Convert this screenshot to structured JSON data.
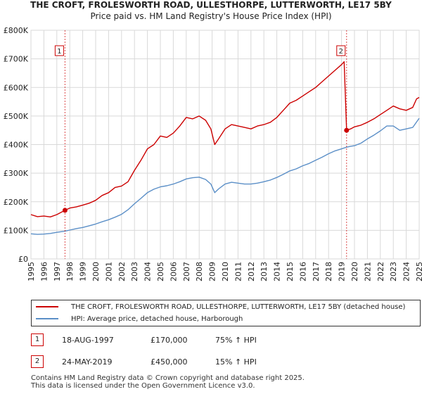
{
  "title": "THE CROFT, FROLESWORTH ROAD, ULLESTHORPE, LUTTERWORTH, LE17 5BY",
  "subtitle": "Price paid vs. HM Land Registry's House Price Index (HPI)",
  "colors": {
    "property": "#cc0000",
    "hpi": "#5b8fc7",
    "grid": "#d9d9d9",
    "marker": "#cc0000"
  },
  "chart_data": {
    "type": "line",
    "title": "THE CROFT, FROLESWORTH ROAD, ULLESTHORPE, LUTTERWORTH, LE17 5BY",
    "subtitle": "Price paid vs. HM Land Registry's House Price Index (HPI)",
    "xlabel": "",
    "ylabel": "",
    "xlim": [
      1995,
      2025
    ],
    "ylim": [
      0,
      800000
    ],
    "x_ticks": [
      "1995",
      "1996",
      "1997",
      "1998",
      "1999",
      "2000",
      "2001",
      "2002",
      "2003",
      "2004",
      "2005",
      "2006",
      "2007",
      "2008",
      "2009",
      "2010",
      "2011",
      "2012",
      "2013",
      "2014",
      "2015",
      "2016",
      "2017",
      "2018",
      "2019",
      "2020",
      "2021",
      "2022",
      "2023",
      "2024",
      "2025"
    ],
    "y_ticks": [
      {
        "value": 0,
        "label": "£0"
      },
      {
        "value": 100000,
        "label": "£100K"
      },
      {
        "value": 200000,
        "label": "£200K"
      },
      {
        "value": 300000,
        "label": "£300K"
      },
      {
        "value": 400000,
        "label": "£400K"
      },
      {
        "value": 500000,
        "label": "£500K"
      },
      {
        "value": 600000,
        "label": "£600K"
      },
      {
        "value": 700000,
        "label": "£700K"
      },
      {
        "value": 800000,
        "label": "£800K"
      }
    ],
    "grid": true,
    "series": [
      {
        "name": "THE CROFT, FROLESWORTH ROAD, ULLESTHORPE, LUTTERWORTH, LE17 5BY (detached house)",
        "color": "#cc0000",
        "points": [
          [
            1995.0,
            155000
          ],
          [
            1995.5,
            148000
          ],
          [
            1996.0,
            150000
          ],
          [
            1996.5,
            147000
          ],
          [
            1997.0,
            155000
          ],
          [
            1997.63,
            170000
          ],
          [
            1998.0,
            178000
          ],
          [
            1998.5,
            182000
          ],
          [
            1999.0,
            188000
          ],
          [
            1999.5,
            195000
          ],
          [
            2000.0,
            205000
          ],
          [
            2000.5,
            222000
          ],
          [
            2001.0,
            232000
          ],
          [
            2001.5,
            250000
          ],
          [
            2002.0,
            255000
          ],
          [
            2002.5,
            270000
          ],
          [
            2003.0,
            310000
          ],
          [
            2003.5,
            345000
          ],
          [
            2004.0,
            385000
          ],
          [
            2004.5,
            400000
          ],
          [
            2005.0,
            430000
          ],
          [
            2005.5,
            425000
          ],
          [
            2006.0,
            440000
          ],
          [
            2006.5,
            465000
          ],
          [
            2007.0,
            495000
          ],
          [
            2007.5,
            490000
          ],
          [
            2008.0,
            500000
          ],
          [
            2008.5,
            485000
          ],
          [
            2008.9,
            455000
          ],
          [
            2009.2,
            400000
          ],
          [
            2009.5,
            420000
          ],
          [
            2010.0,
            455000
          ],
          [
            2010.5,
            470000
          ],
          [
            2011.0,
            465000
          ],
          [
            2011.5,
            460000
          ],
          [
            2012.0,
            455000
          ],
          [
            2012.5,
            465000
          ],
          [
            2013.0,
            470000
          ],
          [
            2013.5,
            478000
          ],
          [
            2014.0,
            495000
          ],
          [
            2014.5,
            520000
          ],
          [
            2015.0,
            545000
          ],
          [
            2015.5,
            555000
          ],
          [
            2016.0,
            570000
          ],
          [
            2016.5,
            585000
          ],
          [
            2017.0,
            600000
          ],
          [
            2017.5,
            620000
          ],
          [
            2018.0,
            640000
          ],
          [
            2018.5,
            660000
          ],
          [
            2019.0,
            680000
          ],
          [
            2019.2,
            690000
          ],
          [
            2019.39,
            450000
          ],
          [
            2019.7,
            455000
          ],
          [
            2020.0,
            462000
          ],
          [
            2020.5,
            468000
          ],
          [
            2021.0,
            478000
          ],
          [
            2021.5,
            490000
          ],
          [
            2022.0,
            505000
          ],
          [
            2022.5,
            520000
          ],
          [
            2023.0,
            535000
          ],
          [
            2023.5,
            525000
          ],
          [
            2024.0,
            520000
          ],
          [
            2024.5,
            530000
          ],
          [
            2024.8,
            560000
          ],
          [
            2025.0,
            565000
          ]
        ]
      },
      {
        "name": "HPI: Average price, detached house, Harborough",
        "color": "#5b8fc7",
        "points": [
          [
            1995.0,
            88000
          ],
          [
            1995.5,
            86000
          ],
          [
            1996.0,
            87000
          ],
          [
            1996.5,
            89000
          ],
          [
            1997.0,
            93000
          ],
          [
            1997.63,
            97000
          ],
          [
            1998.0,
            101000
          ],
          [
            1998.5,
            106000
          ],
          [
            1999.0,
            110000
          ],
          [
            1999.5,
            116000
          ],
          [
            2000.0,
            122000
          ],
          [
            2000.5,
            130000
          ],
          [
            2001.0,
            137000
          ],
          [
            2001.5,
            146000
          ],
          [
            2002.0,
            156000
          ],
          [
            2002.5,
            172000
          ],
          [
            2003.0,
            193000
          ],
          [
            2003.5,
            212000
          ],
          [
            2004.0,
            232000
          ],
          [
            2004.5,
            244000
          ],
          [
            2005.0,
            252000
          ],
          [
            2005.5,
            256000
          ],
          [
            2006.0,
            262000
          ],
          [
            2006.5,
            270000
          ],
          [
            2007.0,
            280000
          ],
          [
            2007.5,
            284000
          ],
          [
            2008.0,
            286000
          ],
          [
            2008.5,
            278000
          ],
          [
            2008.9,
            262000
          ],
          [
            2009.2,
            232000
          ],
          [
            2009.5,
            245000
          ],
          [
            2010.0,
            262000
          ],
          [
            2010.5,
            268000
          ],
          [
            2011.0,
            265000
          ],
          [
            2011.5,
            262000
          ],
          [
            2012.0,
            262000
          ],
          [
            2012.5,
            265000
          ],
          [
            2013.0,
            270000
          ],
          [
            2013.5,
            276000
          ],
          [
            2014.0,
            285000
          ],
          [
            2014.5,
            296000
          ],
          [
            2015.0,
            308000
          ],
          [
            2015.5,
            315000
          ],
          [
            2016.0,
            326000
          ],
          [
            2016.5,
            334000
          ],
          [
            2017.0,
            345000
          ],
          [
            2017.5,
            356000
          ],
          [
            2018.0,
            368000
          ],
          [
            2018.5,
            378000
          ],
          [
            2019.0,
            385000
          ],
          [
            2019.39,
            391000
          ],
          [
            2019.7,
            394000
          ],
          [
            2020.0,
            396000
          ],
          [
            2020.5,
            405000
          ],
          [
            2021.0,
            420000
          ],
          [
            2021.5,
            433000
          ],
          [
            2022.0,
            448000
          ],
          [
            2022.5,
            465000
          ],
          [
            2023.0,
            465000
          ],
          [
            2023.5,
            450000
          ],
          [
            2024.0,
            455000
          ],
          [
            2024.5,
            460000
          ],
          [
            2025.0,
            492000
          ]
        ]
      }
    ],
    "annotations": [
      {
        "label": "1",
        "x": 1997.63,
        "value": 170000
      },
      {
        "label": "2",
        "x": 2019.39,
        "value": 450000
      }
    ]
  },
  "legend": [
    {
      "label": "THE CROFT, FROLESWORTH ROAD, ULLESTHORPE, LUTTERWORTH, LE17 5BY (detached house)",
      "color": "#cc0000"
    },
    {
      "label": "HPI: Average price, detached house, Harborough",
      "color": "#5b8fc7"
    }
  ],
  "transactions": [
    {
      "num": "1",
      "date": "18-AUG-1997",
      "price": "£170,000",
      "hpi": "75% ↑ HPI"
    },
    {
      "num": "2",
      "date": "24-MAY-2019",
      "price": "£450,000",
      "hpi": "15% ↑ HPI"
    }
  ],
  "footer": {
    "line1": "Contains HM Land Registry data © Crown copyright and database right 2025.",
    "line2": "This data is licensed under the Open Government Licence v3.0."
  }
}
